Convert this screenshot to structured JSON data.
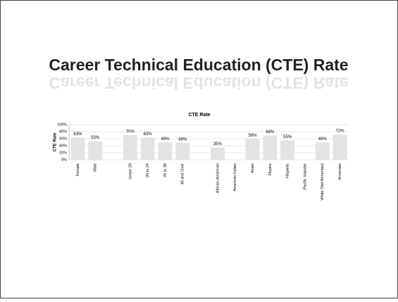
{
  "chart_data": {
    "type": "bar",
    "heading": "Career Technical Education (CTE) Rate",
    "title": "CTE Rate",
    "ylabel": "CTE Rate",
    "categories": [
      "Female",
      "Male",
      null,
      "Under 20",
      "20 to 24",
      "25 to 39",
      "40 and Over",
      null,
      "African-American",
      "American Indian",
      "Asian",
      "Filipino",
      "Hispanic",
      "Pacific Islander",
      "White (Not Armenian)",
      "Armenian"
    ],
    "values": [
      63,
      53,
      null,
      70,
      63,
      49,
      48,
      null,
      35,
      null,
      59,
      69,
      55,
      null,
      49,
      72
    ],
    "value_labels": [
      "63%",
      "53%",
      null,
      "70%",
      "63%",
      "49%",
      "48%",
      null,
      "35%",
      null,
      "59%",
      "69%",
      "55%",
      null,
      "49%",
      "72%"
    ],
    "color": "#e3e3e3",
    "ylim": [
      0,
      100
    ],
    "yticks": [
      {
        "value": 0,
        "label": "0%"
      },
      {
        "value": 20,
        "label": "20%"
      },
      {
        "value": 40,
        "label": "40%"
      },
      {
        "value": 60,
        "label": "60%"
      },
      {
        "value": 80,
        "label": "80%"
      },
      {
        "value": 100,
        "label": "100%"
      }
    ],
    "grid": true
  }
}
